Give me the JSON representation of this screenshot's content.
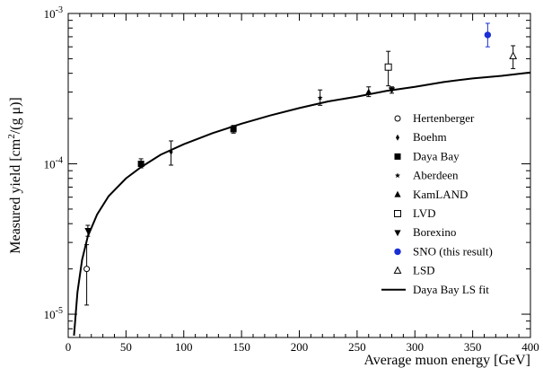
{
  "chart_data": {
    "type": "scatter",
    "title": "",
    "xlabel": "Average muon energy [GeV]",
    "ylabel": "Measured yield [cm²/(g μ)]",
    "ylabel_parts": {
      "pre": "Measured yield [cm",
      "sup": "2",
      "post": "/(g μ)]"
    },
    "xlim": [
      0,
      400
    ],
    "ylim": [
      7e-06,
      0.001
    ],
    "yscale": "log",
    "grid": false,
    "legend_position": "bottom-right",
    "x_ticks": [
      {
        "value": 0,
        "label": "0"
      },
      {
        "value": 50,
        "label": "50"
      },
      {
        "value": 100,
        "label": "100"
      },
      {
        "value": 150,
        "label": "150"
      },
      {
        "value": 200,
        "label": "200"
      },
      {
        "value": 250,
        "label": "250"
      },
      {
        "value": 300,
        "label": "300"
      },
      {
        "value": 350,
        "label": "350"
      },
      {
        "value": 400,
        "label": "400"
      }
    ],
    "y_ticks": [
      {
        "value": 1e-05,
        "base": "10",
        "exp": "-5"
      },
      {
        "value": 0.0001,
        "base": "10",
        "exp": "-4"
      },
      {
        "value": 0.001,
        "base": "10",
        "exp": "-3"
      }
    ],
    "series": [
      {
        "name": "Hertenberger",
        "marker": "open-circle",
        "color": "#000000",
        "points": [
          {
            "x": 16,
            "y": 2e-05,
            "ylo": 1.15e-05,
            "yhi": 2.9e-05
          }
        ]
      },
      {
        "name": "Boehm",
        "marker": "diamond",
        "color": "#000000",
        "points": [
          {
            "x": 89,
            "y": 0.00012,
            "ylo": 9.8e-05,
            "yhi": 0.000142
          }
        ]
      },
      {
        "name": "Daya Bay",
        "marker": "square",
        "color": "#000000",
        "points": [
          {
            "x": 63,
            "y": 0.0001,
            "ylo": 9.4e-05,
            "yhi": 0.000108
          },
          {
            "x": 143,
            "y": 0.00017,
            "ylo": 0.00016,
            "yhi": 0.00018
          }
        ]
      },
      {
        "name": "Aberdeen",
        "marker": "star",
        "color": "#000000",
        "points": [
          {
            "x": 218,
            "y": 0.000275,
            "ylo": 0.000245,
            "yhi": 0.00031
          }
        ]
      },
      {
        "name": "KamLAND",
        "marker": "triangle-up",
        "color": "#000000",
        "points": [
          {
            "x": 260,
            "y": 0.0003,
            "ylo": 0.00028,
            "yhi": 0.000325
          }
        ]
      },
      {
        "name": "LVD",
        "marker": "open-square",
        "color": "#000000",
        "points": [
          {
            "x": 277,
            "y": 0.00044,
            "ylo": 0.00033,
            "yhi": 0.00056
          }
        ]
      },
      {
        "name": "Borexino",
        "marker": "triangle-down",
        "color": "#000000",
        "points": [
          {
            "x": 17,
            "y": 3.6e-05,
            "ylo": 3.3e-05,
            "yhi": 3.9e-05
          },
          {
            "x": 280,
            "y": 0.00031,
            "ylo": 0.000295,
            "yhi": 0.000325
          }
        ]
      },
      {
        "name": "SNO (this result)",
        "marker": "circle",
        "color": "#1a2fd6",
        "points": [
          {
            "x": 363,
            "y": 0.00072,
            "ylo": 0.0006,
            "yhi": 0.00086
          }
        ]
      },
      {
        "name": "LSD",
        "marker": "open-triangle-up",
        "color": "#000000",
        "points": [
          {
            "x": 385,
            "y": 0.00052,
            "ylo": 0.00043,
            "yhi": 0.00061
          }
        ]
      }
    ],
    "fit": {
      "name": "Daya Bay LS fit",
      "style": "solid-line",
      "color": "#000000",
      "points": [
        {
          "x": 5,
          "y": 7.2e-06
        },
        {
          "x": 8,
          "y": 1.4e-05
        },
        {
          "x": 12,
          "y": 2.3e-05
        },
        {
          "x": 17,
          "y": 3.3e-05
        },
        {
          "x": 25,
          "y": 4.6e-05
        },
        {
          "x": 35,
          "y": 6.1e-05
        },
        {
          "x": 50,
          "y": 8e-05
        },
        {
          "x": 63,
          "y": 9.5e-05
        },
        {
          "x": 80,
          "y": 0.000115
        },
        {
          "x": 100,
          "y": 0.000135
        },
        {
          "x": 125,
          "y": 0.00016
        },
        {
          "x": 150,
          "y": 0.000185
        },
        {
          "x": 175,
          "y": 0.00021
        },
        {
          "x": 200,
          "y": 0.000235
        },
        {
          "x": 225,
          "y": 0.00026
        },
        {
          "x": 250,
          "y": 0.00028
        },
        {
          "x": 275,
          "y": 0.000305
        },
        {
          "x": 300,
          "y": 0.000325
        },
        {
          "x": 325,
          "y": 0.00035
        },
        {
          "x": 350,
          "y": 0.00037
        },
        {
          "x": 375,
          "y": 0.000385
        },
        {
          "x": 400,
          "y": 0.000405
        }
      ]
    }
  }
}
